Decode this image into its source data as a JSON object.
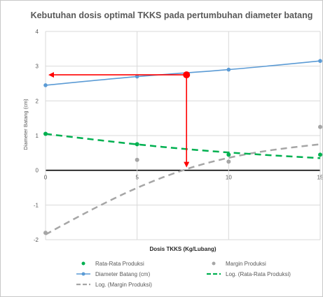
{
  "chart_data": {
    "type": "line",
    "title": "Kebutuhan dosis optimal TKKS pada pertumbuhan diameter batang",
    "xlabel": "Dosis TKKS (Kg/Lubang)",
    "ylabel": "Diameter Batang (cm)",
    "xlim": [
      0,
      15
    ],
    "ylim": [
      -2,
      4
    ],
    "x_ticks": [
      "0",
      "5",
      "10",
      "15"
    ],
    "y_ticks": [
      "-2",
      "-1",
      "0",
      "1",
      "2",
      "3",
      "4"
    ],
    "grid": true,
    "legend_position": "bottom",
    "series": [
      {
        "name": "Rata-Rata Produksi",
        "kind": "scatter",
        "color": "#00b050",
        "x": [
          0,
          5,
          10,
          15
        ],
        "y": [
          1.05,
          0.75,
          0.45,
          0.45
        ]
      },
      {
        "name": "Margin Produksi",
        "kind": "scatter",
        "color": "#a6a6a6",
        "x": [
          0,
          5,
          10,
          15
        ],
        "y": [
          -1.8,
          0.3,
          0.25,
          1.25
        ]
      },
      {
        "name": "Diameter Batang (cm)",
        "kind": "line",
        "color": "#5b9bd5",
        "x": [
          0,
          5,
          10,
          15
        ],
        "y": [
          2.45,
          2.7,
          2.9,
          3.15
        ]
      },
      {
        "name": "Log. (Rata-Rata Produksi)",
        "kind": "trend",
        "color": "#00b050",
        "x": [
          0,
          15
        ],
        "y": [
          1.05,
          0.35
        ]
      },
      {
        "name": "Log. (Margin Produksi)",
        "kind": "trend",
        "color": "#a6a6a6",
        "x": [
          0,
          15
        ],
        "y": [
          -1.85,
          0.75
        ]
      }
    ],
    "annotations": {
      "optimum_point": {
        "x": 7.7,
        "y": 2.75,
        "color": "#ff0000"
      }
    },
    "legend": [
      "Rata-Rata Produksi",
      "Margin Produksi",
      "Diameter Batang (cm)",
      "Log. (Rata-Rata Produksi)",
      "Log. (Margin Produksi)"
    ]
  }
}
